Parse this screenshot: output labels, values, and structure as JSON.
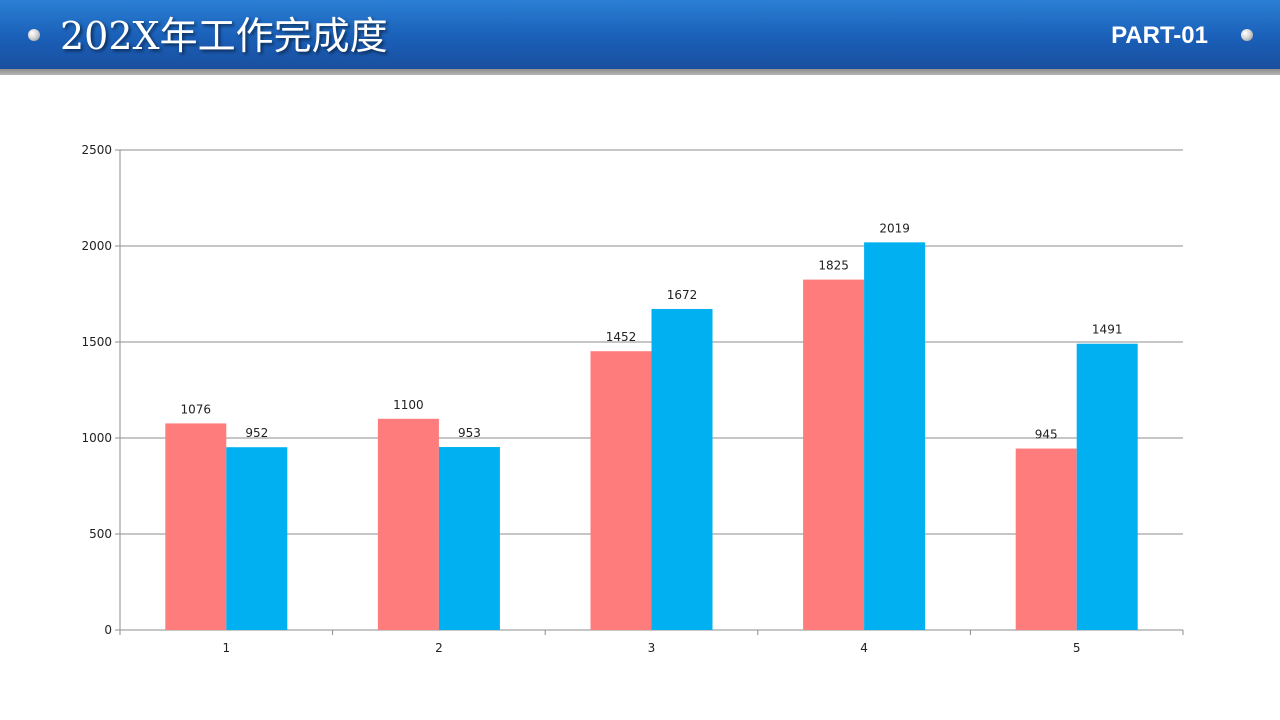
{
  "header": {
    "title": "202X年工作完成度",
    "part_label": "PART-01"
  },
  "chart_data": {
    "type": "bar",
    "categories": [
      "1",
      "2",
      "3",
      "4",
      "5"
    ],
    "series": [
      {
        "values": [
          1076,
          1100,
          1452,
          1825,
          945
        ],
        "color": "#ff7c7c"
      },
      {
        "values": [
          952,
          953,
          1672,
          2019,
          1491
        ],
        "color": "#00b0f0"
      }
    ],
    "ylim": [
      0,
      2500
    ],
    "yticks": [
      0,
      500,
      1000,
      1500,
      2000,
      2500
    ],
    "grid": true,
    "data_labels": true
  }
}
